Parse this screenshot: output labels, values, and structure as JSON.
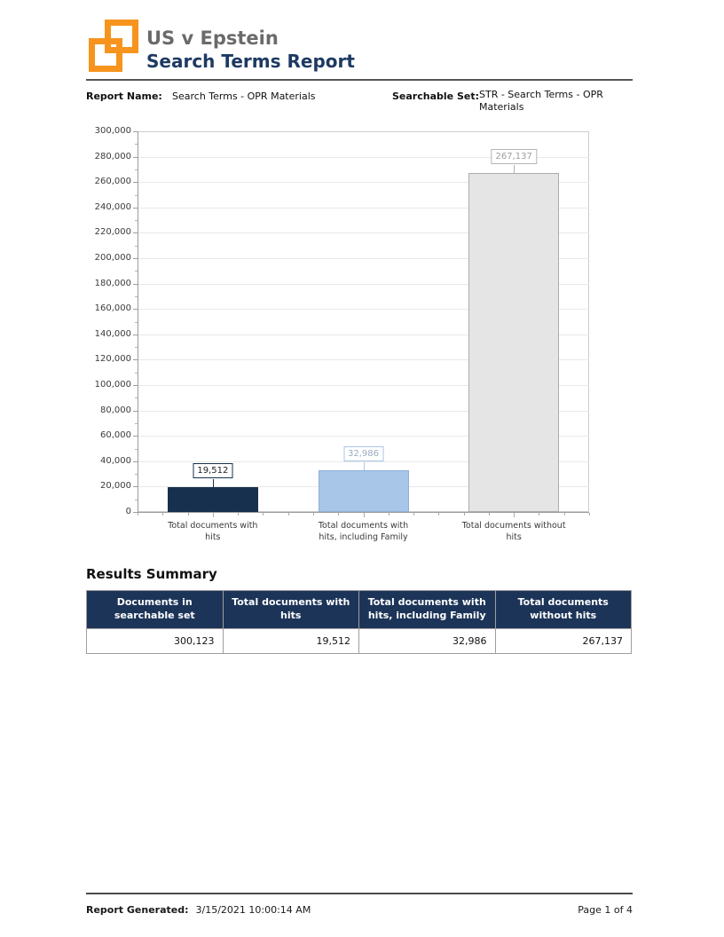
{
  "header": {
    "case_title": "US v Epstein",
    "report_title": "Search Terms Report",
    "logo_color": "#f7941e"
  },
  "meta": {
    "report_name_label": "Report Name:",
    "report_name_value": "Search Terms - OPR Materials",
    "searchable_set_label": "Searchable Set:",
    "searchable_set_value": "STR - Search Terms - OPR Materials"
  },
  "chart_data": {
    "type": "bar",
    "title": "",
    "xlabel": "",
    "ylabel": "",
    "categories": [
      "Total documents with hits",
      "Total documents with hits, including Family",
      "Total documents without hits"
    ],
    "category_display": [
      "Total documents with\nhits",
      "Total documents with\nhits, including Family",
      "Total documents without\nhits"
    ],
    "values": [
      19512,
      32986,
      267137
    ],
    "value_labels": [
      "19,512",
      "32,986",
      "267,137"
    ],
    "bar_colors": [
      "#17304d",
      "#a8c6e8",
      "#e5e5e5"
    ],
    "bar_borders": [
      "#17304d",
      "#8fb0d9",
      "#acacac"
    ],
    "label_text_colors": [
      "#222222",
      "#9aabc2",
      "#9d9d9d"
    ],
    "label_border_colors": [
      "#17304d",
      "#a8c6e8",
      "#b4b4b4"
    ],
    "ylim": [
      0,
      300000
    ],
    "ytick_step": 20000,
    "yminor_step": 10000,
    "grid": true,
    "legend": false
  },
  "summary": {
    "heading": "Results Summary",
    "columns": [
      "Documents in\nsearchable set",
      "Total documents with\nhits",
      "Total documents with\nhits, including Family",
      "Total documents\nwithout hits"
    ],
    "row": [
      "300,123",
      "19,512",
      "32,986",
      "267,137"
    ]
  },
  "footer": {
    "generated_label": "Report Generated:",
    "generated_value": "3/15/2021 10:00:14 AM",
    "page_label": "Page 1 of 4"
  }
}
